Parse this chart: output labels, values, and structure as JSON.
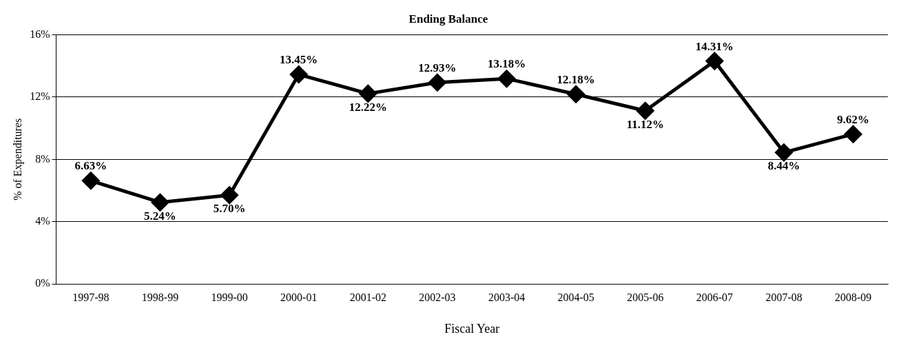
{
  "chart_data": {
    "type": "line",
    "title": "Ending Balance",
    "xlabel": "Fiscal Year",
    "ylabel": "% of Expenditures",
    "categories": [
      "1997-98",
      "1998-99",
      "1999-00",
      "2000-01",
      "2001-02",
      "2002-03",
      "2003-04",
      "2004-05",
      "2005-06",
      "2006-07",
      "2007-08",
      "2008-09"
    ],
    "series": [
      {
        "color": "#000000",
        "values": [
          6.63,
          5.24,
          5.7,
          13.45,
          12.22,
          12.93,
          13.18,
          12.18,
          11.12,
          14.31,
          8.44,
          9.62
        ],
        "value_labels": [
          "6.63%",
          "5.24%",
          "5.70%",
          "13.45%",
          "12.22%",
          "12.93%",
          "13.18%",
          "12.18%",
          "11.12%",
          "14.31%",
          "8.44%",
          "9.62%"
        ]
      }
    ],
    "ylim": [
      0,
      16
    ],
    "yticks": [
      {
        "value": 0,
        "label": "0%"
      },
      {
        "value": 4,
        "label": "4%"
      },
      {
        "value": 8,
        "label": "8%"
      },
      {
        "value": 12,
        "label": "12%"
      },
      {
        "value": 16,
        "label": "16%"
      }
    ],
    "grid": "y",
    "legend": false,
    "marker": "diamond",
    "line_style": "solid"
  }
}
